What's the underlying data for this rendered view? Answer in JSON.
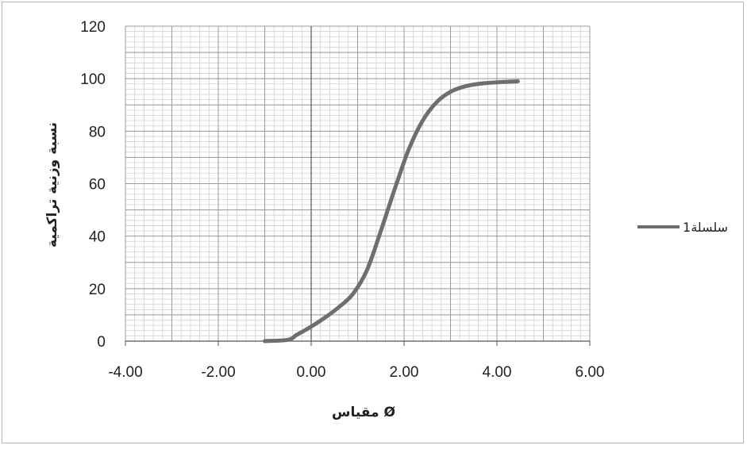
{
  "chart_data": {
    "type": "line",
    "title": "",
    "xlabel": "مقياس Ø",
    "ylabel": "نسبة وزنية تراكمية",
    "xlim": [
      -4,
      6
    ],
    "ylim": [
      0,
      120
    ],
    "x_ticks": [
      "-4.00",
      "-2.00",
      "0.00",
      "2.00",
      "4.00",
      "6.00"
    ],
    "y_ticks": [
      "0",
      "20",
      "40",
      "60",
      "80",
      "100",
      "120"
    ],
    "grid": true,
    "legend_position": "right",
    "series": [
      {
        "name": "سلسلة1",
        "color": "#6e6e6e",
        "x": [
          -1.0,
          -0.5,
          -0.3,
          0.0,
          0.3,
          0.6,
          0.9,
          1.2,
          1.5,
          1.8,
          2.1,
          2.4,
          2.7,
          3.0,
          3.3,
          3.6,
          4.0,
          4.45
        ],
        "y": [
          0,
          0.5,
          2.5,
          5.5,
          9,
          13,
          18,
          27,
          42,
          58,
          73,
          84,
          91,
          95,
          97,
          98,
          98.6,
          99
        ]
      }
    ]
  }
}
